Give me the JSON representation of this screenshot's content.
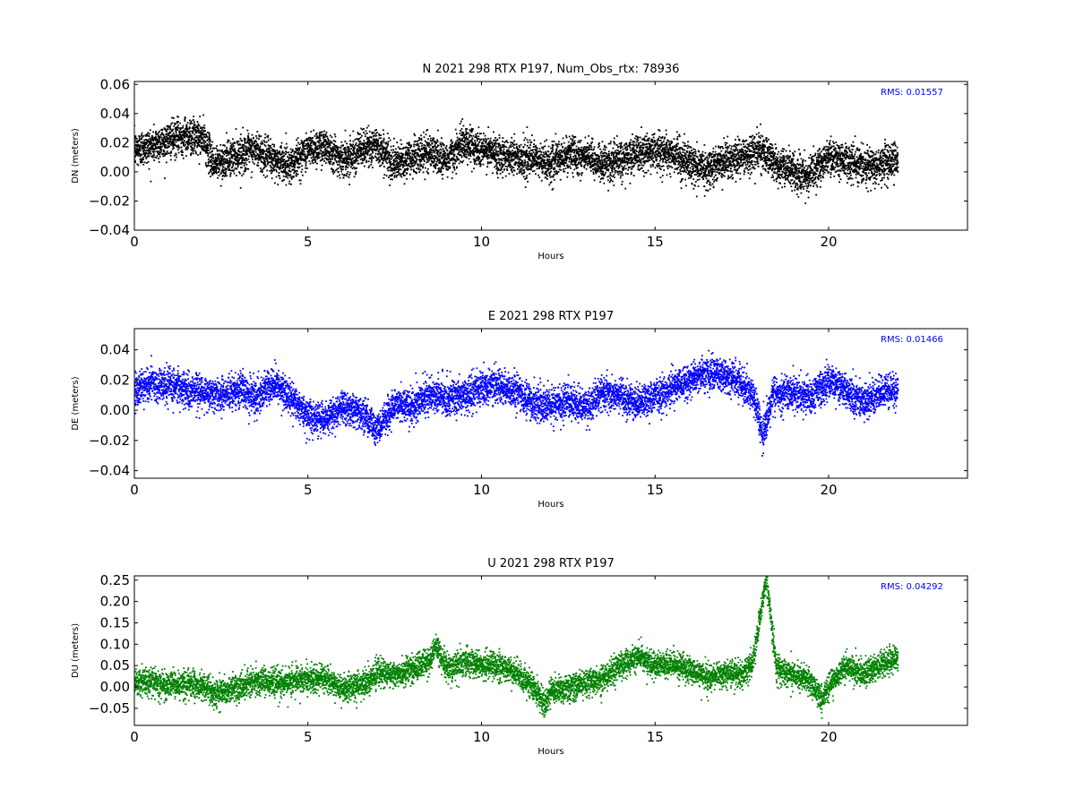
{
  "chart_data": [
    {
      "type": "scatter",
      "title": "N 2021 298 RTX  P197, Num_Obs_rtx: 78936",
      "xlabel": "Hours",
      "ylabel": "DN (meters)",
      "xlim": [
        0,
        24
      ],
      "ylim": [
        -0.04,
        0.062
      ],
      "xticks": [
        0,
        5,
        10,
        15,
        20
      ],
      "yticks": [
        -0.04,
        -0.02,
        0.0,
        0.02,
        0.04,
        0.06
      ],
      "ytick_labels": [
        "−0.04",
        "−0.02",
        "0.00",
        "0.02",
        "0.04",
        "0.06"
      ],
      "annotation": "RMS:  0.01557",
      "color": "#000000",
      "annotation_color": "#0000ff",
      "series": [
        {
          "x": [
            0,
            0.5,
            1.0,
            1.5,
            2.0,
            2.3,
            2.6,
            3.0,
            3.5,
            4.0,
            4.5,
            5.0,
            5.5,
            6.0,
            6.5,
            7.0,
            7.5,
            8.0,
            8.5,
            9.0,
            9.5,
            10.0,
            10.5,
            11.0,
            11.5,
            12.0,
            12.5,
            13.0,
            13.5,
            14.0,
            14.5,
            15.0,
            15.5,
            16.0,
            16.5,
            17.0,
            17.5,
            18.0,
            18.5,
            19.0,
            19.3,
            19.6,
            20.0,
            20.5,
            21.0,
            21.5,
            22.0
          ],
          "y": [
            0.015,
            0.018,
            0.022,
            0.025,
            0.022,
            0.005,
            0.008,
            0.012,
            0.015,
            0.008,
            0.005,
            0.015,
            0.018,
            0.008,
            0.015,
            0.018,
            0.005,
            0.01,
            0.014,
            0.008,
            0.02,
            0.015,
            0.012,
            0.01,
            0.008,
            0.006,
            0.012,
            0.01,
            0.005,
            0.008,
            0.012,
            0.015,
            0.012,
            0.006,
            0.002,
            0.008,
            0.01,
            0.015,
            0.005,
            0.0,
            -0.005,
            0.002,
            0.01,
            0.008,
            0.004,
            0.006,
            0.008
          ],
          "spread": 0.011
        }
      ]
    },
    {
      "type": "scatter",
      "title": "E 2021 298 RTX  P197",
      "xlabel": "Hours",
      "ylabel": "DE (meters)",
      "xlim": [
        0,
        24
      ],
      "ylim": [
        -0.045,
        0.054
      ],
      "xticks": [
        0,
        5,
        10,
        15,
        20
      ],
      "yticks": [
        -0.04,
        -0.02,
        0.0,
        0.02,
        0.04
      ],
      "ytick_labels": [
        "−0.04",
        "−0.02",
        "0.00",
        "0.02",
        "0.04"
      ],
      "annotation": "RMS:  0.01466",
      "color": "#0000ff",
      "annotation_color": "#0000ff",
      "series": [
        {
          "x": [
            0,
            0.5,
            1.0,
            1.5,
            2.0,
            2.5,
            3.0,
            3.5,
            4.0,
            4.5,
            5.0,
            5.5,
            6.0,
            6.5,
            7.0,
            7.5,
            8.0,
            8.5,
            9.0,
            9.5,
            10.0,
            10.5,
            11.0,
            11.5,
            12.0,
            12.5,
            13.0,
            13.5,
            14.0,
            14.5,
            15.0,
            15.5,
            16.0,
            16.5,
            17.0,
            17.5,
            17.9,
            18.1,
            18.4,
            19.0,
            19.5,
            20.0,
            20.5,
            21.0,
            21.5,
            22.0
          ],
          "y": [
            0.012,
            0.018,
            0.016,
            0.014,
            0.012,
            0.01,
            0.014,
            0.008,
            0.018,
            0.008,
            -0.004,
            -0.006,
            0.002,
            -0.002,
            -0.012,
            0.004,
            0.002,
            0.01,
            0.008,
            0.01,
            0.014,
            0.016,
            0.012,
            0.004,
            0.004,
            0.006,
            0.002,
            0.012,
            0.01,
            0.004,
            0.01,
            0.014,
            0.02,
            0.025,
            0.022,
            0.018,
            0.005,
            -0.018,
            0.01,
            0.012,
            0.008,
            0.02,
            0.014,
            0.004,
            0.012,
            0.014
          ],
          "spread": 0.01
        }
      ]
    },
    {
      "type": "scatter",
      "title": "U 2021 298 RTX  P197",
      "xlabel": "Hours",
      "ylabel": "DU (meters)",
      "xlim": [
        0,
        24
      ],
      "ylim": [
        -0.09,
        0.26
      ],
      "xticks": [
        0,
        5,
        10,
        15,
        20
      ],
      "yticks": [
        -0.05,
        0.0,
        0.05,
        0.1,
        0.15,
        0.2,
        0.25
      ],
      "ytick_labels": [
        "−0.05",
        "0.00",
        "0.05",
        "0.10",
        "0.15",
        "0.20",
        "0.25"
      ],
      "annotation": "RMS:  0.04292",
      "color": "#008000",
      "annotation_color": "#0000ff",
      "series": [
        {
          "x": [
            0,
            0.5,
            1.0,
            1.5,
            2.0,
            2.3,
            2.6,
            3.0,
            3.5,
            4.0,
            4.5,
            5.0,
            5.5,
            6.0,
            6.5,
            7.0,
            7.5,
            8.0,
            8.5,
            8.7,
            9.0,
            9.5,
            10.0,
            10.5,
            11.0,
            11.5,
            11.8,
            12.0,
            12.5,
            13.0,
            13.5,
            14.0,
            14.5,
            15.0,
            15.5,
            16.0,
            16.5,
            17.0,
            17.5,
            17.8,
            18.0,
            18.2,
            18.5,
            19.0,
            19.5,
            19.8,
            20.0,
            20.5,
            21.0,
            21.5,
            22.0
          ],
          "y": [
            0.01,
            0.01,
            0.005,
            0.008,
            0.002,
            -0.015,
            -0.01,
            0.0,
            0.015,
            0.01,
            0.015,
            0.02,
            0.02,
            -0.005,
            0.005,
            0.03,
            0.03,
            0.04,
            0.06,
            0.1,
            0.04,
            0.06,
            0.05,
            0.05,
            0.03,
            0.0,
            -0.04,
            -0.01,
            0.0,
            0.01,
            0.02,
            0.05,
            0.07,
            0.05,
            0.05,
            0.04,
            0.02,
            0.03,
            0.03,
            0.05,
            0.15,
            0.26,
            0.04,
            0.03,
            0.01,
            -0.03,
            0.0,
            0.05,
            0.03,
            0.05,
            0.07
          ],
          "spread": 0.028
        }
      ]
    }
  ]
}
